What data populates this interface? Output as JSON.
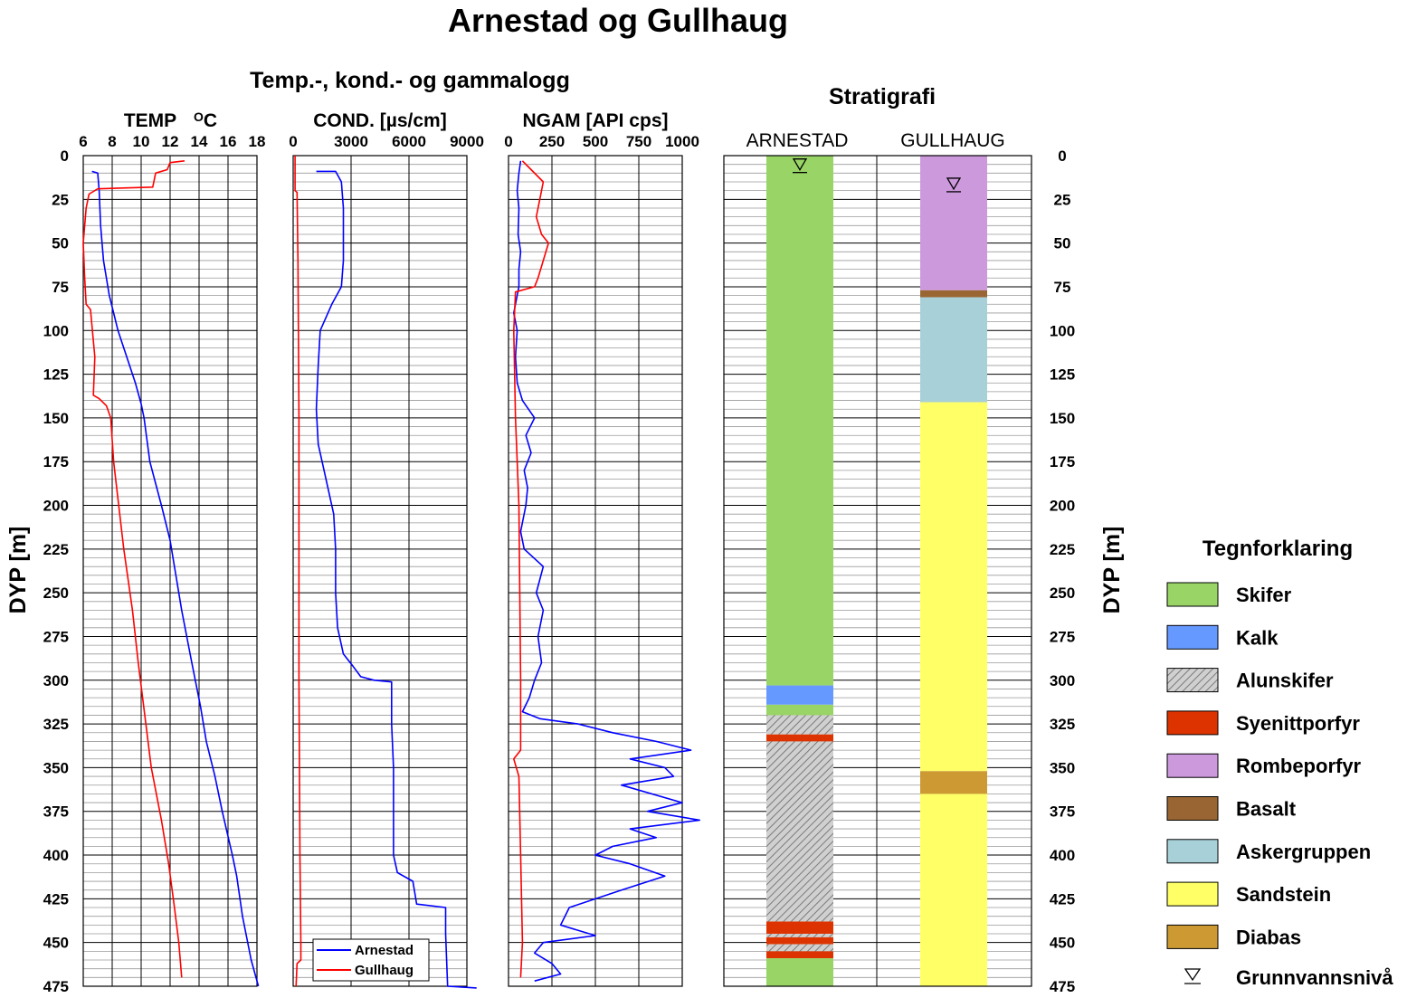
{
  "title": "Arnestad og Gullhaug",
  "subtitle_logs": "Temp.-, kond.- og gammalogg",
  "subtitle_strat": "Stratigrafi",
  "y_label": "DYP  [m]",
  "legend_title": "Tegnforklaring",
  "chart_data": [
    {
      "type": "line",
      "id": "temp",
      "xlabel": "TEMP",
      "xlabel_unit": "OC",
      "xlim": [
        6,
        18
      ],
      "x_ticks": [
        "6",
        "8",
        "10",
        "12",
        "14",
        "16",
        "18"
      ],
      "ylim": [
        0,
        475
      ],
      "y_inverted": true,
      "y_ticks": [
        "0",
        "25",
        "50",
        "75",
        "100",
        "125",
        "150",
        "175",
        "200",
        "225",
        "250",
        "275",
        "300",
        "325",
        "350",
        "375",
        "400",
        "425",
        "450",
        "475"
      ],
      "series": [
        {
          "name": "Arnestad",
          "color": "#0000ff",
          "points": [
            [
              6.6,
              9
            ],
            [
              7.0,
              10
            ],
            [
              7.1,
              20
            ],
            [
              7.2,
              40
            ],
            [
              7.4,
              60
            ],
            [
              7.8,
              80
            ],
            [
              8.4,
              100
            ],
            [
              9.2,
              120
            ],
            [
              9.6,
              130
            ],
            [
              10.0,
              142
            ],
            [
              10.2,
              150
            ],
            [
              10.6,
              175
            ],
            [
              11.4,
              200
            ],
            [
              12.0,
              220
            ],
            [
              12.3,
              235
            ],
            [
              12.8,
              260
            ],
            [
              13.5,
              290
            ],
            [
              14.1,
              315
            ],
            [
              14.5,
              335
            ],
            [
              15.1,
              355
            ],
            [
              15.6,
              375
            ],
            [
              16.3,
              400
            ],
            [
              16.6,
              412
            ],
            [
              17.0,
              435
            ],
            [
              17.6,
              460
            ],
            [
              18.1,
              475
            ]
          ]
        },
        {
          "name": "Gullhaug",
          "color": "#ff0000",
          "points": [
            [
              13.0,
              3
            ],
            [
              12.0,
              4
            ],
            [
              11.8,
              8
            ],
            [
              11.0,
              10
            ],
            [
              10.8,
              18
            ],
            [
              7.0,
              19
            ],
            [
              6.4,
              22
            ],
            [
              6.2,
              30
            ],
            [
              6.0,
              50
            ],
            [
              6.1,
              70
            ],
            [
              6.2,
              85
            ],
            [
              6.5,
              88
            ],
            [
              6.8,
              115
            ],
            [
              6.7,
              137
            ],
            [
              7.1,
              139
            ],
            [
              7.6,
              143
            ],
            [
              7.9,
              150
            ],
            [
              8.1,
              175
            ],
            [
              8.8,
              225
            ],
            [
              9.4,
              260
            ],
            [
              9.8,
              290
            ],
            [
              10.1,
              310
            ],
            [
              10.7,
              350
            ],
            [
              11.4,
              380
            ],
            [
              11.9,
              405
            ],
            [
              12.3,
              430
            ],
            [
              12.6,
              450
            ],
            [
              12.8,
              470
            ]
          ]
        }
      ]
    },
    {
      "type": "line",
      "id": "cond",
      "xlabel": "COND. [µs/cm]",
      "xlim": [
        0,
        9000
      ],
      "x_ticks": [
        "0",
        "3000",
        "6000",
        "9000"
      ],
      "ylim": [
        0,
        475
      ],
      "y_inverted": true,
      "legend": [
        "Arnestad",
        "Gullhaug"
      ],
      "series": [
        {
          "name": "Arnestad",
          "color": "#0000ff",
          "points": [
            [
              1200,
              9
            ],
            [
              2200,
              9
            ],
            [
              2500,
              15
            ],
            [
              2600,
              30
            ],
            [
              2600,
              60
            ],
            [
              2500,
              75
            ],
            [
              2000,
              85
            ],
            [
              1400,
              100
            ],
            [
              1300,
              120
            ],
            [
              1200,
              145
            ],
            [
              1300,
              165
            ],
            [
              1500,
              175
            ],
            [
              1800,
              190
            ],
            [
              2100,
              205
            ],
            [
              2200,
              225
            ],
            [
              2200,
              250
            ],
            [
              2300,
              270
            ],
            [
              2600,
              285
            ],
            [
              3100,
              292
            ],
            [
              3500,
              298
            ],
            [
              4200,
              300
            ],
            [
              5100,
              301
            ],
            [
              5100,
              325
            ],
            [
              5200,
              350
            ],
            [
              5200,
              400
            ],
            [
              5400,
              410
            ],
            [
              6200,
              415
            ],
            [
              6400,
              428
            ],
            [
              7900,
              430
            ],
            [
              7900,
              445
            ],
            [
              8000,
              475
            ],
            [
              9500,
              476
            ]
          ]
        },
        {
          "name": "Gullhaug",
          "color": "#ff0000",
          "points": [
            [
              100,
              0
            ],
            [
              100,
              20
            ],
            [
              200,
              21
            ],
            [
              250,
              60
            ],
            [
              300,
              150
            ],
            [
              300,
              300
            ],
            [
              350,
              400
            ],
            [
              400,
              450
            ],
            [
              400,
              460
            ],
            [
              200,
              462
            ],
            [
              150,
              475
            ]
          ]
        }
      ]
    },
    {
      "type": "line",
      "id": "ngam",
      "xlabel": "NGAM [API cps]",
      "xlim": [
        0,
        1000
      ],
      "x_ticks": [
        "0",
        "250",
        "500",
        "750",
        "1000"
      ],
      "ylim": [
        0,
        475
      ],
      "y_inverted": true,
      "series": [
        {
          "name": "Arnestad",
          "color": "#0000ff",
          "points": [
            [
              70,
              3
            ],
            [
              60,
              10
            ],
            [
              50,
              20
            ],
            [
              60,
              30
            ],
            [
              55,
              45
            ],
            [
              70,
              55
            ],
            [
              60,
              65
            ],
            [
              60,
              75
            ],
            [
              30,
              90
            ],
            [
              50,
              100
            ],
            [
              40,
              115
            ],
            [
              50,
              130
            ],
            [
              80,
              140
            ],
            [
              150,
              150
            ],
            [
              100,
              160
            ],
            [
              130,
              170
            ],
            [
              90,
              180
            ],
            [
              110,
              190
            ],
            [
              100,
              200
            ],
            [
              70,
              215
            ],
            [
              90,
              225
            ],
            [
              200,
              235
            ],
            [
              160,
              250
            ],
            [
              200,
              260
            ],
            [
              170,
              275
            ],
            [
              190,
              290
            ],
            [
              150,
              300
            ],
            [
              120,
              310
            ],
            [
              80,
              318
            ],
            [
              180,
              322
            ],
            [
              400,
              325
            ],
            [
              600,
              330
            ],
            [
              850,
              335
            ],
            [
              1050,
              340
            ],
            [
              700,
              345
            ],
            [
              900,
              350
            ],
            [
              950,
              355
            ],
            [
              650,
              360
            ],
            [
              1000,
              370
            ],
            [
              800,
              375
            ],
            [
              1100,
              380
            ],
            [
              700,
              385
            ],
            [
              850,
              390
            ],
            [
              600,
              395
            ],
            [
              500,
              400
            ],
            [
              700,
              405
            ],
            [
              900,
              412
            ],
            [
              650,
              420
            ],
            [
              350,
              430
            ],
            [
              300,
              440
            ],
            [
              500,
              446
            ],
            [
              200,
              450
            ],
            [
              150,
              456
            ],
            [
              250,
              462
            ],
            [
              300,
              468
            ],
            [
              150,
              472
            ]
          ]
        },
        {
          "name": "Gullhaug",
          "color": "#ff0000",
          "points": [
            [
              80,
              3
            ],
            [
              130,
              8
            ],
            [
              200,
              15
            ],
            [
              180,
              25
            ],
            [
              160,
              35
            ],
            [
              190,
              45
            ],
            [
              230,
              50
            ],
            [
              200,
              60
            ],
            [
              170,
              70
            ],
            [
              150,
              75
            ],
            [
              40,
              78
            ],
            [
              30,
              100
            ],
            [
              40,
              150
            ],
            [
              60,
              200
            ],
            [
              70,
              300
            ],
            [
              70,
              340
            ],
            [
              30,
              345
            ],
            [
              60,
              355
            ],
            [
              70,
              400
            ],
            [
              80,
              450
            ],
            [
              70,
              470
            ]
          ]
        }
      ]
    }
  ],
  "stratigraphy": {
    "columns": [
      {
        "name": "ARNESTAD",
        "water_level": 5,
        "layers": [
          {
            "unit": "Skifer",
            "top": 0,
            "bottom": 303
          },
          {
            "unit": "Kalk",
            "top": 303,
            "bottom": 314
          },
          {
            "unit": "Skifer",
            "top": 314,
            "bottom": 320
          },
          {
            "unit": "Alunskifer",
            "top": 320,
            "bottom": 331
          },
          {
            "unit": "Syenittporfyr",
            "top": 331,
            "bottom": 335
          },
          {
            "unit": "Alunskifer",
            "top": 335,
            "bottom": 438
          },
          {
            "unit": "Syenittporfyr",
            "top": 438,
            "bottom": 445
          },
          {
            "unit": "Alunskifer",
            "top": 445,
            "bottom": 447
          },
          {
            "unit": "Syenittporfyr",
            "top": 447,
            "bottom": 451
          },
          {
            "unit": "Alunskifer",
            "top": 451,
            "bottom": 455
          },
          {
            "unit": "Syenittporfyr",
            "top": 455,
            "bottom": 459
          },
          {
            "unit": "Skifer",
            "top": 459,
            "bottom": 475
          }
        ]
      },
      {
        "name": "GULLHAUG",
        "water_level": 16,
        "layers": [
          {
            "unit": "Rombeporfyr",
            "top": 0,
            "bottom": 77
          },
          {
            "unit": "Basalt",
            "top": 77,
            "bottom": 81
          },
          {
            "unit": "Askergruppen",
            "top": 81,
            "bottom": 141
          },
          {
            "unit": "Sandstein",
            "top": 141,
            "bottom": 352
          },
          {
            "unit": "Diabas",
            "top": 352,
            "bottom": 365
          },
          {
            "unit": "Sandstein",
            "top": 365,
            "bottom": 475
          }
        ]
      }
    ]
  },
  "legend": [
    {
      "label": "Skifer",
      "color": "#99d466"
    },
    {
      "label": "Kalk",
      "color": "#6699ff"
    },
    {
      "label": "Alunskifer",
      "color": "#c8c8c8",
      "pattern": "hatch"
    },
    {
      "label": "Syenittporfyr",
      "color": "#dd3300"
    },
    {
      "label": "Rombeporfyr",
      "color": "#cc99dd"
    },
    {
      "label": "Basalt",
      "color": "#996633"
    },
    {
      "label": "Askergruppen",
      "color": "#a8d0d8"
    },
    {
      "label": "Sandstein",
      "color": "#ffff66"
    },
    {
      "label": "Diabas",
      "color": "#cc9933"
    },
    {
      "label": "Grunnvannsnivå",
      "symbol": "triangle-down"
    }
  ]
}
